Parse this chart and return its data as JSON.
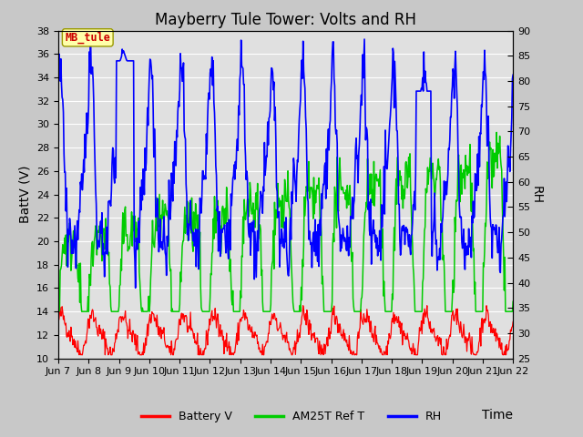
{
  "title": "Mayberry Tule Tower: Volts and RH",
  "xlabel": "Time",
  "ylabel_left": "BattV (V)",
  "ylabel_right": "RH",
  "ylim_left": [
    10,
    38
  ],
  "ylim_right": [
    25,
    90
  ],
  "yticks_left": [
    10,
    12,
    14,
    16,
    18,
    20,
    22,
    24,
    26,
    28,
    30,
    32,
    34,
    36,
    38
  ],
  "yticks_right": [
    25,
    30,
    35,
    40,
    45,
    50,
    55,
    60,
    65,
    70,
    75,
    80,
    85,
    90
  ],
  "xtick_labels": [
    "Jun 7",
    "Jun 8",
    "Jun 9",
    "Jun 10",
    "Jun 11",
    "Jun 12",
    "Jun 13",
    "Jun 14",
    "Jun 15",
    "Jun 16",
    "Jun 17",
    "Jun 18",
    "Jun 19",
    "Jun 20",
    "Jun 21",
    "Jun 22"
  ],
  "legend_labels": [
    "Battery V",
    "AM25T Ref T",
    "RH"
  ],
  "line_colors": [
    "#ff0000",
    "#00cc00",
    "#0000ff"
  ],
  "label_box_color": "#ffffaa",
  "label_box_text": "MB_tule",
  "label_box_text_color": "#cc0000",
  "fig_bg": "#c8c8c8",
  "plot_bg": "#e0e0e0",
  "grid_color": "#ffffff",
  "title_fontsize": 12,
  "axis_fontsize": 10,
  "tick_fontsize": 8,
  "n_days": 15,
  "n_per_day": 48,
  "rh_ylim": [
    25,
    90
  ],
  "batt_ylim": [
    10,
    38
  ]
}
